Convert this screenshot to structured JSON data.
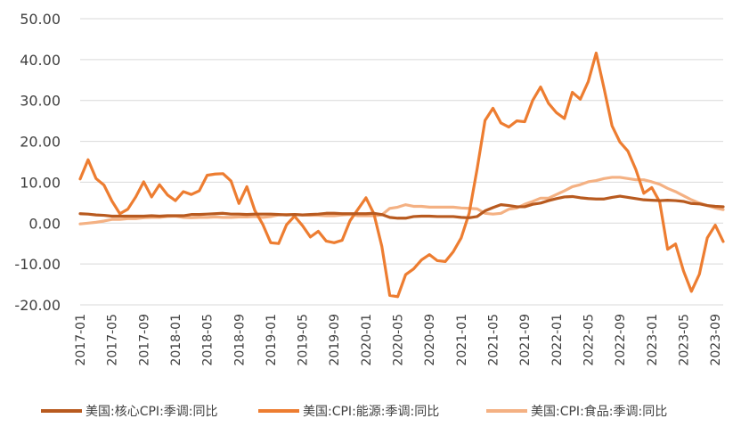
{
  "chart_data": {
    "type": "line",
    "title": "",
    "xlabel": "",
    "ylabel": "",
    "ylim": [
      -20,
      50
    ],
    "yticks": [
      {
        "value": 50,
        "label": "50.00"
      },
      {
        "value": 40,
        "label": "40.00"
      },
      {
        "value": 30,
        "label": "30.00"
      },
      {
        "value": 20,
        "label": "20.00"
      },
      {
        "value": 10,
        "label": "10.00"
      },
      {
        "value": 0,
        "label": "0.00"
      },
      {
        "value": -10,
        "label": "-10.00"
      },
      {
        "value": -20,
        "label": "-20.00"
      }
    ],
    "x_start": "2017-01",
    "x_end": "2023-10",
    "xticks": [
      "2017-01",
      "2017-05",
      "2017-09",
      "2018-01",
      "2018-05",
      "2018-09",
      "2019-01",
      "2019-05",
      "2019-09",
      "2020-01",
      "2020-05",
      "2020-09",
      "2021-01",
      "2021-05",
      "2021-09",
      "2022-01",
      "2022-05",
      "2022-09",
      "2023-01",
      "2023-05",
      "2023-09"
    ],
    "grid": "horizontal",
    "legend_position": "bottom",
    "series": [
      {
        "name": "美国:核心CPI:季调:同比",
        "color": "#B85A1F",
        "values": [
          2.3,
          2.2,
          2.0,
          1.9,
          1.7,
          1.7,
          1.7,
          1.7,
          1.7,
          1.8,
          1.7,
          1.8,
          1.8,
          1.8,
          2.1,
          2.1,
          2.2,
          2.3,
          2.4,
          2.2,
          2.2,
          2.1,
          2.2,
          2.2,
          2.2,
          2.1,
          2.0,
          2.1,
          2.0,
          2.1,
          2.2,
          2.4,
          2.4,
          2.3,
          2.3,
          2.3,
          2.3,
          2.4,
          2.1,
          1.4,
          1.2,
          1.2,
          1.6,
          1.7,
          1.7,
          1.6,
          1.6,
          1.6,
          1.4,
          1.3,
          1.6,
          3.0,
          3.8,
          4.5,
          4.3,
          4.0,
          4.0,
          4.6,
          4.9,
          5.5,
          6.0,
          6.4,
          6.5,
          6.2,
          6.0,
          5.9,
          5.9,
          6.3,
          6.6,
          6.3,
          6.0,
          5.7,
          5.6,
          5.5,
          5.6,
          5.5,
          5.3,
          4.8,
          4.7,
          4.3,
          4.1,
          4.0
        ]
      },
      {
        "name": "美国:CPI:能源:季调:同比",
        "color": "#ED7D31",
        "values": [
          10.8,
          15.5,
          10.9,
          9.3,
          5.4,
          2.3,
          3.4,
          6.4,
          10.1,
          6.4,
          9.4,
          6.9,
          5.5,
          7.7,
          7.0,
          7.9,
          11.7,
          12.0,
          12.1,
          10.3,
          4.8,
          8.9,
          3.1,
          -0.3,
          -4.8,
          -5.0,
          -0.4,
          1.7,
          -0.6,
          -3.4,
          -2.0,
          -4.4,
          -4.8,
          -4.2,
          0.6,
          3.4,
          6.2,
          2.3,
          -5.7,
          -17.7,
          -18.0,
          -12.6,
          -11.2,
          -9.0,
          -7.7,
          -9.2,
          -9.4,
          -7.0,
          -3.6,
          2.4,
          13.2,
          25.1,
          28.1,
          24.5,
          23.5,
          25.0,
          24.8,
          30.0,
          33.3,
          29.3,
          27.0,
          25.6,
          32.0,
          30.3,
          34.6,
          41.6,
          32.9,
          23.8,
          19.8,
          17.6,
          13.1,
          7.3,
          8.7,
          5.2,
          -6.4,
          -5.1,
          -11.7,
          -16.7,
          -12.5,
          -3.6,
          -0.5,
          -4.5
        ]
      },
      {
        "name": "美国:CPI:食品:季调:同比",
        "color": "#F4B183",
        "values": [
          -0.2,
          0.0,
          0.2,
          0.5,
          0.9,
          0.9,
          1.1,
          1.1,
          1.3,
          1.4,
          1.4,
          1.6,
          1.7,
          1.4,
          1.3,
          1.4,
          1.4,
          1.5,
          1.4,
          1.4,
          1.5,
          1.5,
          1.6,
          1.4,
          1.6,
          2.0,
          2.1,
          2.1,
          2.0,
          1.9,
          1.9,
          1.8,
          1.8,
          2.0,
          2.1,
          1.8,
          1.8,
          1.8,
          2.0,
          3.6,
          3.9,
          4.5,
          4.1,
          4.1,
          3.9,
          3.9,
          3.9,
          3.9,
          3.7,
          3.6,
          3.5,
          2.4,
          2.2,
          2.4,
          3.4,
          3.7,
          4.6,
          5.3,
          6.1,
          6.1,
          7.0,
          7.9,
          8.9,
          9.4,
          10.1,
          10.4,
          10.9,
          11.2,
          11.2,
          10.9,
          10.6,
          10.6,
          10.1,
          9.5,
          8.5,
          7.7,
          6.7,
          5.7,
          4.9,
          4.3,
          3.7,
          3.3
        ]
      }
    ]
  }
}
